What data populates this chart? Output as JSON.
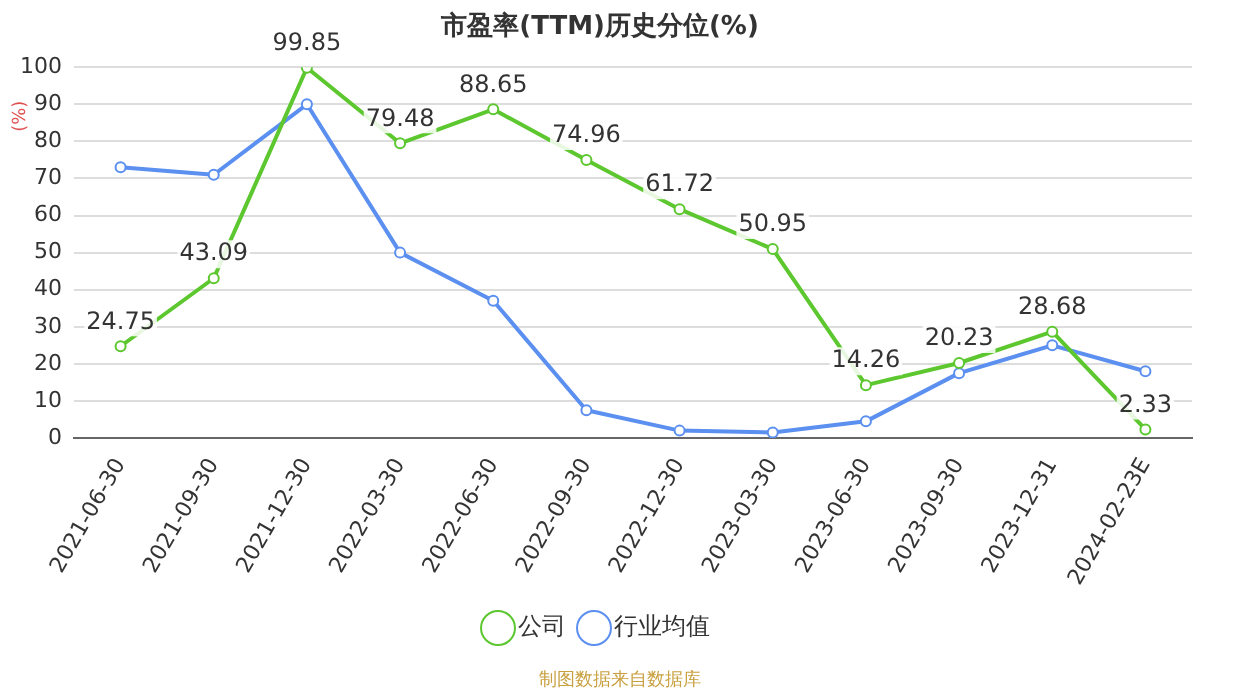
{
  "chart_data": {
    "type": "line",
    "title": "市盈率(TTM)历史分位(%)",
    "ylabel": "(%)",
    "categories": [
      "2021-06-30",
      "2021-09-30",
      "2021-12-30",
      "2022-03-30",
      "2022-06-30",
      "2022-09-30",
      "2022-12-30",
      "2023-03-30",
      "2023-06-30",
      "2023-09-30",
      "2023-12-31",
      "2024-02-23E"
    ],
    "series": [
      {
        "name": "公司",
        "color": "#5cc72e",
        "values": [
          24.75,
          43.09,
          99.85,
          79.48,
          88.65,
          74.96,
          61.72,
          50.95,
          14.26,
          20.23,
          28.68,
          2.33
        ],
        "value_labels": [
          "24.75",
          "43.09",
          "99.85",
          "79.48",
          "88.65",
          "74.96",
          "61.72",
          "50.95",
          "14.26",
          "20.23",
          "28.68",
          "2.33"
        ]
      },
      {
        "name": "行业均值",
        "color": "#5b8ff0",
        "values": [
          73,
          71,
          90,
          50,
          37,
          7.5,
          2,
          1.5,
          4.5,
          17.5,
          25,
          18
        ]
      }
    ],
    "ylim": [
      0,
      100
    ],
    "yticks": [
      0,
      10,
      20,
      30,
      40,
      50,
      60,
      70,
      80,
      90,
      100
    ],
    "grid": "y",
    "legend": "bottom",
    "marker": "circle",
    "line_style": "solid",
    "annotations": [
      "制图数据来自数据库"
    ]
  }
}
